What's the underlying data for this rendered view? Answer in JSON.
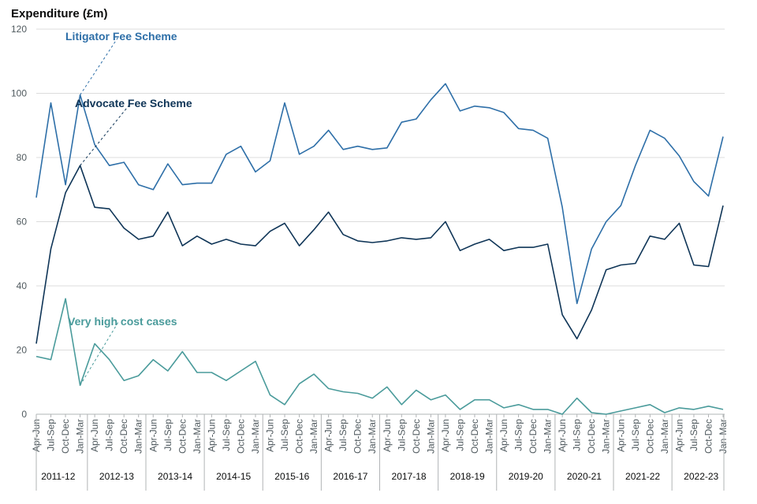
{
  "chart_data": {
    "type": "line",
    "ylabel": "Expenditure (£m)",
    "ylim": [
      0,
      120
    ],
    "yticks": [
      0,
      20,
      40,
      60,
      80,
      100,
      120
    ],
    "grid": true,
    "categories": [
      "Apr-Jun",
      "Jul-Sep",
      "Oct-Dec",
      "Jan-Mar",
      "Apr-Jun",
      "Jul-Sep",
      "Oct-Dec",
      "Jan-Mar",
      "Apr-Jun",
      "Jul-Sep",
      "Oct-Dec",
      "Jan-Mar",
      "Apr-Jun",
      "Jul-Sep",
      "Oct-Dec",
      "Jan-Mar",
      "Apr-Jun",
      "Jul-Sep",
      "Oct-Dec",
      "Jan-Mar",
      "Apr-Jun",
      "Jul-Sep",
      "Oct-Dec",
      "Jan-Mar",
      "Apr-Jun",
      "Jul-Sep",
      "Oct-Dec",
      "Jan-Mar",
      "Apr-Jun",
      "Jul-Sep",
      "Oct-Dec",
      "Jan-Mar",
      "Apr-Jun",
      "Jul-Sep",
      "Oct-Dec",
      "Jan-Mar",
      "Apr-Jun",
      "Jul-Sep",
      "Oct-Dec",
      "Jan-Mar",
      "Apr-Jun",
      "Jul-Sep",
      "Oct-Dec",
      "Jan-Mar",
      "Apr-Jun",
      "Jul-Sep",
      "Oct-Dec",
      "Jan-Mar"
    ],
    "years": [
      "2011-12",
      "2012-13",
      "2013-14",
      "2014-15",
      "2015-16",
      "2016-17",
      "2017-18",
      "2018-19",
      "2019-20",
      "2020-21",
      "2021-22",
      "2022-23"
    ],
    "series": [
      {
        "name": "Litigator Fee Scheme",
        "color": "#2e6fa8",
        "label_anchor_index": 3,
        "values": [
          67.5,
          97,
          71.5,
          99.5,
          84,
          77.5,
          78.5,
          71.5,
          70,
          78,
          71.5,
          72,
          72,
          81,
          83.5,
          75.5,
          79,
          97,
          81,
          83.5,
          88.5,
          82.5,
          83.5,
          82.5,
          83,
          91,
          92,
          98,
          103,
          94.5,
          96,
          95.5,
          94,
          89,
          88.5,
          86,
          64.5,
          34.5,
          51.5,
          60,
          65,
          77.5,
          88.5,
          86,
          80.5,
          72.5,
          68,
          86.5
        ]
      },
      {
        "name": "Advocate Fee Scheme",
        "color": "#0f3557",
        "label_anchor_index": 3,
        "values": [
          22,
          51.5,
          69,
          77.5,
          64.5,
          64,
          58,
          54.5,
          55.5,
          63,
          52.5,
          55.5,
          53,
          54.5,
          53,
          52.5,
          57,
          59.5,
          52.5,
          57.5,
          63,
          56,
          54,
          53.5,
          54,
          55,
          54.5,
          55,
          60,
          51,
          53,
          54.5,
          51,
          52,
          52,
          53,
          31,
          23.5,
          32.5,
          45,
          46.5,
          47,
          55.5,
          54.5,
          59.5,
          46.5,
          46,
          65
        ]
      },
      {
        "name": "Very high cost cases",
        "color": "#4a9b9b",
        "label_anchor_index": 3,
        "values": [
          18,
          17,
          36,
          9,
          22,
          17,
          10.5,
          12,
          17,
          13.5,
          19.5,
          13,
          13,
          10.5,
          13.5,
          16.5,
          6,
          3,
          9.5,
          12.5,
          8,
          7,
          6.5,
          5,
          8.5,
          3,
          7.5,
          4.5,
          6,
          1.5,
          4.5,
          4.5,
          2,
          3,
          1.5,
          1.5,
          0,
          5,
          0.5,
          0,
          1,
          2,
          3,
          0.5,
          2,
          1.5,
          2.5,
          1.5
        ]
      }
    ]
  }
}
